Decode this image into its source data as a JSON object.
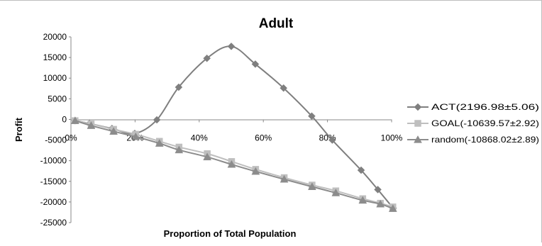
{
  "chart_data": {
    "type": "line",
    "title": "Adult",
    "xlabel": "Proportion of Total Population",
    "ylabel": "Profit",
    "xlim": [
      0,
      100
    ],
    "ylim": [
      -25000,
      20000
    ],
    "x_ticks": [
      "0%",
      "20%",
      "40%",
      "60%",
      "80%",
      "100%"
    ],
    "y_ticks": [
      "20000",
      "15000",
      "10000",
      "5000",
      "0",
      "-5000",
      "-10000",
      "-15000",
      "-20000",
      "-25000"
    ],
    "grid": false,
    "legend_position": "right",
    "x": [
      0,
      8.33,
      16.67,
      25,
      33.33,
      41.67,
      50,
      58.33,
      66.67,
      75,
      83.33,
      91.67,
      100
    ],
    "series": [
      {
        "name": "ACT(2196.98±5.06)",
        "marker": "diamond",
        "color": "#7f7f7f",
        "x": [
          1.3,
          5.8,
          12.8,
          19.9,
          26.8,
          33.6,
          42.4,
          50.0,
          57.5,
          66.3,
          75.1,
          81.5,
          90.5,
          95.7,
          100.5
        ],
        "values": [
          -300,
          -1000,
          -2200,
          -3400,
          -100,
          7800,
          14800,
          17700,
          13400,
          7600,
          800,
          -5000,
          -12300,
          -17000,
          -21500
        ]
      },
      {
        "name": "GOAL(-10639.57±2.92)",
        "marker": "square",
        "color": "#bfbfbf",
        "x": [
          1.3,
          6.3,
          13.3,
          20.2,
          27.6,
          33.7,
          42.5,
          50.1,
          57.6,
          66.5,
          75.2,
          82.6,
          91.0,
          96.5,
          100.4
        ],
        "values": [
          -300,
          -1100,
          -2400,
          -3600,
          -5300,
          -6700,
          -8300,
          -10200,
          -12100,
          -14100,
          -15900,
          -17300,
          -19200,
          -20300,
          -21200
        ]
      },
      {
        "name": "random(-10868.02±2.89)",
        "marker": "triangle",
        "color": "#8c8c8c",
        "x": [
          1.3,
          6.3,
          13.3,
          20.2,
          27.6,
          33.7,
          42.5,
          50.1,
          57.6,
          66.5,
          75.2,
          82.6,
          91.0,
          96.5,
          100.4
        ],
        "values": [
          -300,
          -1500,
          -2900,
          -4200,
          -5800,
          -7400,
          -9100,
          -10900,
          -12600,
          -14500,
          -16300,
          -17800,
          -19600,
          -20500,
          -21600
        ]
      }
    ]
  }
}
